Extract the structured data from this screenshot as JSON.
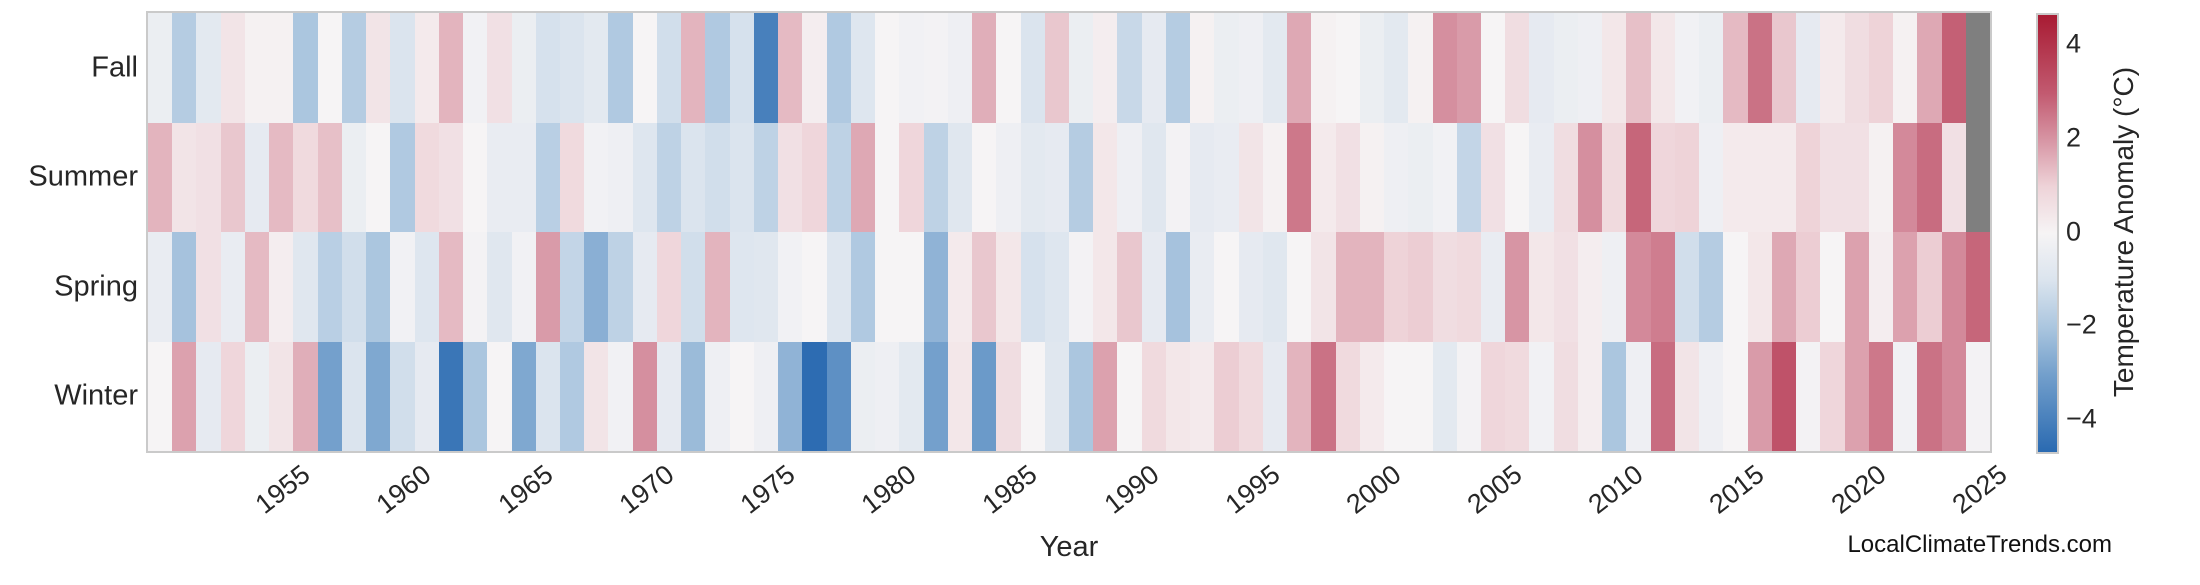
{
  "page": {
    "watermark": "LocalClimateTrends.com"
  },
  "chart_data": {
    "type": "heatmap",
    "xlabel": "Year",
    "colorbar_label": "Temperature Anomaly (°C)",
    "rows": [
      "Fall",
      "Summer",
      "Spring",
      "Winter"
    ],
    "year_start": 1950,
    "years": [
      1950,
      1951,
      1952,
      1953,
      1954,
      1955,
      1956,
      1957,
      1958,
      1959,
      1960,
      1961,
      1962,
      1963,
      1964,
      1965,
      1966,
      1967,
      1968,
      1969,
      1970,
      1971,
      1972,
      1973,
      1974,
      1975,
      1976,
      1977,
      1978,
      1979,
      1980,
      1981,
      1982,
      1983,
      1984,
      1985,
      1986,
      1987,
      1988,
      1989,
      1990,
      1991,
      1992,
      1993,
      1994,
      1995,
      1996,
      1997,
      1998,
      1999,
      2000,
      2001,
      2002,
      2003,
      2004,
      2005,
      2006,
      2007,
      2008,
      2009,
      2010,
      2011,
      2012,
      2013,
      2014,
      2015,
      2016,
      2017,
      2018,
      2019,
      2020,
      2021,
      2022,
      2023,
      2024,
      2025
    ],
    "x_ticks": [
      "1955",
      "1960",
      "1965",
      "1970",
      "1975",
      "1980",
      "1985",
      "1990",
      "1995",
      "2000",
      "2005",
      "2010",
      "2015",
      "2020",
      "2025"
    ],
    "series": [
      {
        "name": "Fall",
        "values": [
          -0.4,
          -1.8,
          -0.7,
          0.5,
          0.1,
          0.1,
          -2.0,
          0.0,
          -1.8,
          0.5,
          -1.0,
          0.3,
          1.5,
          -0.2,
          0.6,
          -0.4,
          -1.1,
          -1.0,
          -0.7,
          -1.9,
          0.0,
          -1.2,
          1.5,
          -1.9,
          -1.1,
          -4.0,
          1.4,
          0.2,
          -1.9,
          -0.9,
          0.0,
          -0.2,
          -0.1,
          -0.3,
          1.6,
          0.0,
          -1.0,
          1.2,
          -0.4,
          0.2,
          -1.4,
          -0.6,
          -1.8,
          0.1,
          -0.4,
          -0.3,
          -0.7,
          1.7,
          0.1,
          0.0,
          -0.4,
          -0.7,
          0.1,
          2.1,
          1.9,
          0.0,
          0.7,
          -0.6,
          -0.4,
          -0.3,
          0.4,
          1.3,
          0.4,
          -0.2,
          -0.4,
          1.4,
          2.6,
          1.2,
          -0.6,
          0.3,
          0.7,
          1.0,
          0.1,
          1.7,
          2.9,
          null
        ]
      },
      {
        "name": "Summer",
        "values": [
          1.5,
          0.5,
          0.6,
          1.2,
          -0.6,
          1.4,
          0.8,
          1.3,
          -0.4,
          0.0,
          -1.9,
          0.8,
          0.6,
          0.0,
          -0.5,
          -0.5,
          -1.7,
          0.8,
          -0.2,
          -0.3,
          -0.9,
          -1.6,
          -1.0,
          -1.2,
          -1.0,
          -1.6,
          0.6,
          0.9,
          -1.6,
          1.7,
          0.0,
          0.9,
          -1.6,
          -0.8,
          0.0,
          -0.3,
          -0.7,
          -0.6,
          -1.8,
          0.4,
          -0.3,
          -0.8,
          -0.1,
          -0.6,
          -0.5,
          0.5,
          0.1,
          2.5,
          0.3,
          0.6,
          0.1,
          -0.3,
          -0.4,
          -0.2,
          -1.5,
          0.6,
          0.0,
          -0.5,
          0.7,
          2.1,
          0.8,
          2.8,
          0.9,
          1.0,
          -0.3,
          0.3,
          0.3,
          0.3,
          1.0,
          0.6,
          0.6,
          0.1,
          2.2,
          2.7,
          0.6,
          null
        ]
      },
      {
        "name": "Spring",
        "values": [
          -0.5,
          -2.1,
          0.6,
          -0.5,
          1.4,
          0.2,
          -0.8,
          -1.7,
          -1.2,
          -2.0,
          -0.2,
          -0.9,
          1.4,
          -0.1,
          -0.8,
          -0.2,
          1.9,
          -1.5,
          -2.6,
          -1.6,
          -0.6,
          0.9,
          -1.2,
          1.5,
          -0.9,
          -0.8,
          -0.2,
          0.0,
          -0.9,
          -1.9,
          0.0,
          0.0,
          -2.5,
          0.3,
          1.2,
          0.4,
          -1.1,
          -0.9,
          -0.1,
          0.4,
          1.2,
          -0.6,
          -2.1,
          -0.5,
          0.0,
          -0.6,
          -0.8,
          0.0,
          0.5,
          1.5,
          1.5,
          1.0,
          1.1,
          0.7,
          0.8,
          -0.5,
          2.0,
          0.4,
          0.6,
          0.2,
          -0.3,
          2.2,
          2.4,
          -1.2,
          -1.8,
          0.0,
          0.4,
          1.7,
          1.1,
          0.0,
          1.8,
          0.2,
          1.8,
          1.1,
          2.2,
          2.8
        ]
      },
      {
        "name": "Winter",
        "values": [
          0.0,
          1.8,
          -0.6,
          0.9,
          -0.4,
          0.5,
          1.6,
          -3.0,
          -1.0,
          -2.8,
          -1.2,
          -0.6,
          -4.3,
          -2.0,
          0.0,
          -2.8,
          -1.0,
          -1.9,
          0.5,
          -0.2,
          2.1,
          -0.6,
          -2.3,
          -0.3,
          0.0,
          -0.3,
          -2.5,
          -4.6,
          -3.5,
          -0.4,
          -0.3,
          -0.7,
          -3.0,
          0.4,
          -3.2,
          0.7,
          0.0,
          -0.8,
          -2.0,
          1.8,
          0.0,
          0.8,
          0.4,
          0.3,
          1.1,
          0.8,
          -0.6,
          1.5,
          2.6,
          0.8,
          0.3,
          0.0,
          0.0,
          -0.7,
          -0.1,
          0.9,
          0.8,
          -0.2,
          0.7,
          0.2,
          -2.0,
          -0.3,
          2.7,
          0.5,
          -0.3,
          0.0,
          1.9,
          3.2,
          -0.1,
          0.9,
          1.8,
          2.5,
          -0.2,
          2.6,
          2.2,
          -0.1
        ]
      }
    ],
    "colorbar_ticks": [
      {
        "label": "4",
        "value": 4
      },
      {
        "label": "2",
        "value": 2
      },
      {
        "label": "0",
        "value": 0
      },
      {
        "label": "−2",
        "value": -2
      },
      {
        "label": "−4",
        "value": -4
      }
    ],
    "vmin": -4.67,
    "vmax": 4.67,
    "missing_color": "#7f7f7f",
    "colormap_anchors": [
      [
        -4.67,
        "#2a6ab1"
      ],
      [
        -3.0,
        "#74a0cc"
      ],
      [
        -2.0,
        "#abc6df"
      ],
      [
        -1.0,
        "#dbe4ee"
      ],
      [
        0.0,
        "#f6f4f5"
      ],
      [
        1.0,
        "#eed3d8"
      ],
      [
        2.0,
        "#d795a4"
      ],
      [
        3.0,
        "#c25a70"
      ],
      [
        4.67,
        "#a81b33"
      ]
    ],
    "legend_position": "right-colorbar",
    "grid": false
  }
}
